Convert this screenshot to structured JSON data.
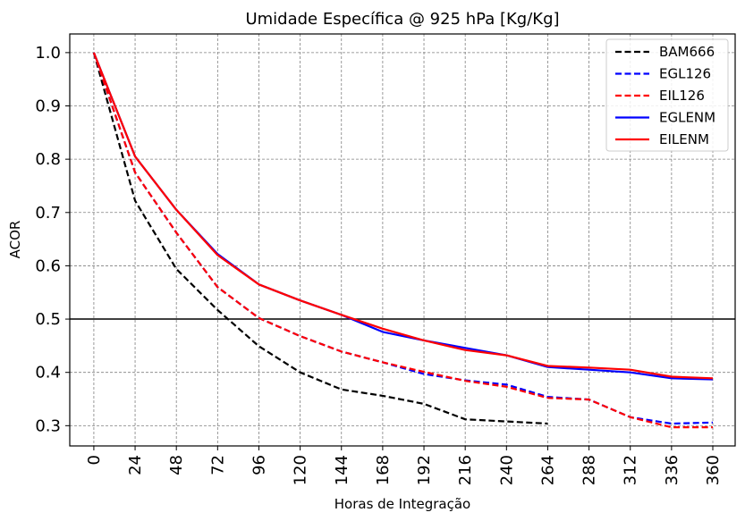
{
  "chart_data": {
    "type": "line",
    "title": "Umidade Específica @ 925 hPa [Kg/Kg]",
    "xlabel": "Horas de Integração",
    "ylabel": "ACOR",
    "x": [
      0,
      24,
      48,
      72,
      96,
      120,
      144,
      168,
      192,
      216,
      240,
      264,
      288,
      312,
      336,
      360
    ],
    "xticks": [
      "0",
      "24",
      "48",
      "72",
      "96",
      "120",
      "144",
      "168",
      "192",
      "216",
      "240",
      "264",
      "288",
      "312",
      "336",
      "360"
    ],
    "yticks": [
      "0.3",
      "0.4",
      "0.5",
      "0.6",
      "0.7",
      "0.8",
      "0.9",
      "1.0"
    ],
    "ytick_values": [
      0.3,
      0.4,
      0.5,
      0.6,
      0.7,
      0.8,
      0.9,
      1.0
    ],
    "xlim": [
      -14,
      373
    ],
    "ylim": [
      0.262,
      1.035
    ],
    "grid": true,
    "legend_position": "top-right",
    "reference_line": {
      "y": 0.5,
      "color": "#000000"
    },
    "series": [
      {
        "name": "BAM666",
        "color": "#000000",
        "style": "dashed",
        "x": [
          0,
          24,
          48,
          72,
          96,
          120,
          144,
          168,
          192,
          216,
          240,
          264
        ],
        "values": [
          1.0,
          0.722,
          0.594,
          0.517,
          0.449,
          0.4,
          0.368,
          0.356,
          0.341,
          0.312,
          0.308,
          0.304
        ]
      },
      {
        "name": "EGL126",
        "color": "#0000ff",
        "style": "dashed",
        "x": [
          0,
          24,
          48,
          72,
          96,
          120,
          144,
          168,
          192,
          216,
          240,
          264,
          288,
          312,
          336,
          360
        ],
        "values": [
          1.0,
          0.775,
          0.662,
          0.56,
          0.502,
          0.468,
          0.439,
          0.419,
          0.397,
          0.385,
          0.377,
          0.354,
          0.349,
          0.316,
          0.304,
          0.306
        ]
      },
      {
        "name": "EIL126",
        "color": "#ff0000",
        "style": "dashed",
        "x": [
          0,
          24,
          48,
          72,
          96,
          120,
          144,
          168,
          192,
          216,
          240,
          264,
          288,
          312,
          336,
          360
        ],
        "values": [
          1.0,
          0.775,
          0.662,
          0.56,
          0.502,
          0.468,
          0.439,
          0.419,
          0.401,
          0.384,
          0.373,
          0.352,
          0.349,
          0.316,
          0.297,
          0.297
        ]
      },
      {
        "name": "EGLENM",
        "color": "#0000ff",
        "style": "solid",
        "x": [
          0,
          24,
          48,
          72,
          96,
          120,
          144,
          168,
          192,
          216,
          240,
          264,
          288,
          312,
          336,
          360
        ],
        "values": [
          1.0,
          0.805,
          0.705,
          0.622,
          0.565,
          0.535,
          0.508,
          0.476,
          0.46,
          0.446,
          0.432,
          0.41,
          0.405,
          0.4,
          0.389,
          0.387
        ]
      },
      {
        "name": "EILENM",
        "color": "#ff0000",
        "style": "solid",
        "x": [
          0,
          24,
          48,
          72,
          96,
          120,
          144,
          168,
          192,
          216,
          240,
          264,
          288,
          312,
          336,
          360
        ],
        "values": [
          1.0,
          0.805,
          0.705,
          0.62,
          0.565,
          0.535,
          0.508,
          0.482,
          0.46,
          0.442,
          0.432,
          0.412,
          0.409,
          0.405,
          0.392,
          0.389
        ]
      }
    ]
  }
}
